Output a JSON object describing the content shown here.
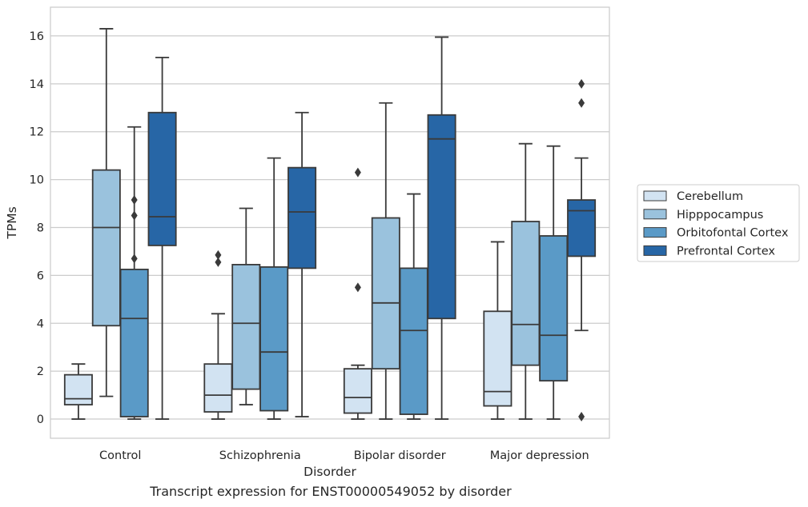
{
  "chart_data": {
    "type": "boxplot",
    "xlabel": "Disorder",
    "ylabel": "TPMs",
    "ylim": [
      -0.8,
      17.2
    ],
    "yticks": [
      0,
      2,
      4,
      6,
      8,
      10,
      12,
      14,
      16
    ],
    "grid": "horizontal",
    "legend_position": "right",
    "categories": [
      "Control",
      "Schizophrenia",
      "Bipolar disorder",
      "Major depression"
    ],
    "series": [
      {
        "name": "Cerebellum",
        "color": "#d2e3f2",
        "boxes": [
          {
            "q1": 0.6,
            "median": 0.85,
            "q3": 1.85,
            "whisker_low": 0.0,
            "whisker_high": 2.3,
            "outliers": []
          },
          {
            "q1": 0.3,
            "median": 1.0,
            "q3": 2.3,
            "whisker_low": 0.0,
            "whisker_high": 4.4,
            "outliers": [
              6.55,
              6.85
            ]
          },
          {
            "q1": 0.25,
            "median": 0.9,
            "q3": 2.1,
            "whisker_low": 0.0,
            "whisker_high": 2.25,
            "outliers": [
              5.5,
              10.3
            ]
          },
          {
            "q1": 0.55,
            "median": 1.15,
            "q3": 4.5,
            "whisker_low": 0.0,
            "whisker_high": 7.4,
            "outliers": []
          }
        ]
      },
      {
        "name": "Hipppocampus",
        "color": "#9ac2dd",
        "boxes": [
          {
            "q1": 3.9,
            "median": 8.0,
            "q3": 10.4,
            "whisker_low": 0.95,
            "whisker_high": 16.3,
            "outliers": []
          },
          {
            "q1": 1.25,
            "median": 4.0,
            "q3": 6.45,
            "whisker_low": 0.6,
            "whisker_high": 8.8,
            "outliers": []
          },
          {
            "q1": 2.1,
            "median": 4.85,
            "q3": 8.4,
            "whisker_low": 0.0,
            "whisker_high": 13.2,
            "outliers": []
          },
          {
            "q1": 2.25,
            "median": 3.95,
            "q3": 8.25,
            "whisker_low": 0.0,
            "whisker_high": 11.5,
            "outliers": []
          }
        ]
      },
      {
        "name": "Orbitofontal Cortex",
        "color": "#5a9ac7",
        "boxes": [
          {
            "q1": 0.1,
            "median": 4.2,
            "q3": 6.25,
            "whisker_low": 0.0,
            "whisker_high": 12.2,
            "outliers": [
              6.7,
              8.5,
              9.15
            ]
          },
          {
            "q1": 0.35,
            "median": 2.8,
            "q3": 6.35,
            "whisker_low": 0.0,
            "whisker_high": 10.9,
            "outliers": []
          },
          {
            "q1": 0.2,
            "median": 3.7,
            "q3": 6.3,
            "whisker_low": 0.0,
            "whisker_high": 9.4,
            "outliers": []
          },
          {
            "q1": 1.6,
            "median": 3.5,
            "q3": 7.65,
            "whisker_low": 0.0,
            "whisker_high": 11.4,
            "outliers": []
          }
        ]
      },
      {
        "name": "Prefrontal Cortex",
        "color": "#2766a6",
        "boxes": [
          {
            "q1": 7.25,
            "median": 8.45,
            "q3": 12.8,
            "whisker_low": 0.0,
            "whisker_high": 15.1,
            "outliers": []
          },
          {
            "q1": 6.3,
            "median": 8.65,
            "q3": 10.5,
            "whisker_low": 0.1,
            "whisker_high": 12.8,
            "outliers": []
          },
          {
            "q1": 4.2,
            "median": 11.7,
            "q3": 12.7,
            "whisker_low": 0.0,
            "whisker_high": 15.95,
            "outliers": []
          },
          {
            "q1": 6.8,
            "median": 8.7,
            "q3": 9.15,
            "whisker_low": 3.7,
            "whisker_high": 10.9,
            "outliers": [
              0.1,
              13.2,
              14.0
            ]
          }
        ]
      }
    ]
  },
  "caption": "Transcript expression for ENST00000549052 by disorder"
}
